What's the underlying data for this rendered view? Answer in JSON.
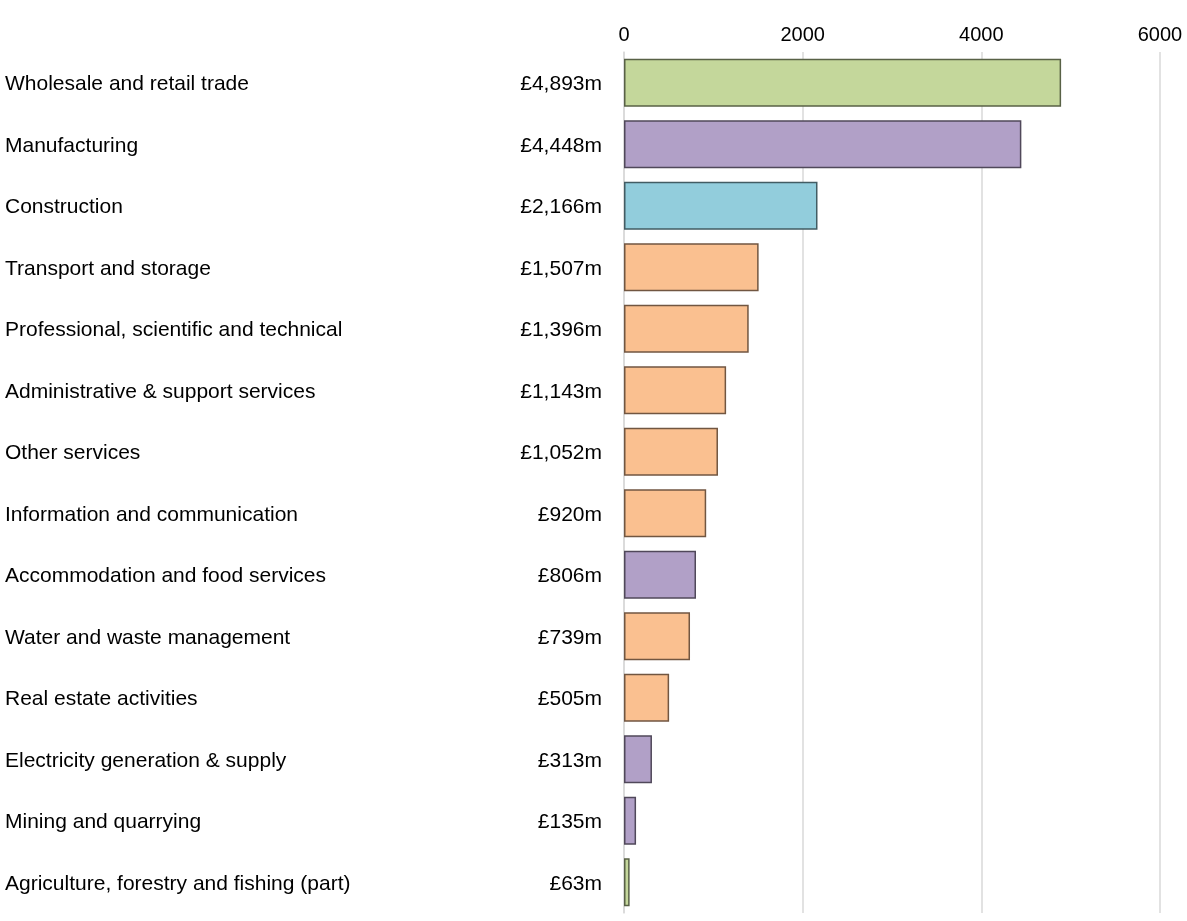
{
  "chart_data": {
    "type": "bar",
    "orientation": "horizontal",
    "categories": [
      "Wholesale and retail trade",
      "Manufacturing",
      "Construction",
      "Transport and storage",
      "Professional, scientific and technical",
      "Administrative & support services",
      "Other services",
      "Information and communication",
      "Accommodation and food services",
      "Water and waste management",
      "Real estate activities",
      "Electricity generation & supply",
      "Mining and quarrying",
      "Agriculture, forestry and fishing (part)"
    ],
    "values": [
      4893,
      4448,
      2166,
      1507,
      1396,
      1143,
      1052,
      920,
      806,
      739,
      505,
      313,
      135,
      63
    ],
    "value_labels": [
      "£4,893m",
      "£4,448m",
      "£2,166m",
      "£1,507m",
      "£1,396m",
      "£1,143m",
      "£1,052m",
      "£920m",
      "£806m",
      "£739m",
      "£505m",
      "£313m",
      "£135m",
      "£63m"
    ],
    "colors": [
      "#c4d79b",
      "#b1a0c7",
      "#92cddc",
      "#fac090",
      "#fac090",
      "#fac090",
      "#fac090",
      "#fac090",
      "#b1a0c7",
      "#fac090",
      "#fac090",
      "#b1a0c7",
      "#b1a0c7",
      "#c4d79b"
    ],
    "x2lim": [
      0,
      6000
    ],
    "x2ticks": [
      0,
      2000,
      4000,
      6000
    ],
    "grid": "x"
  }
}
